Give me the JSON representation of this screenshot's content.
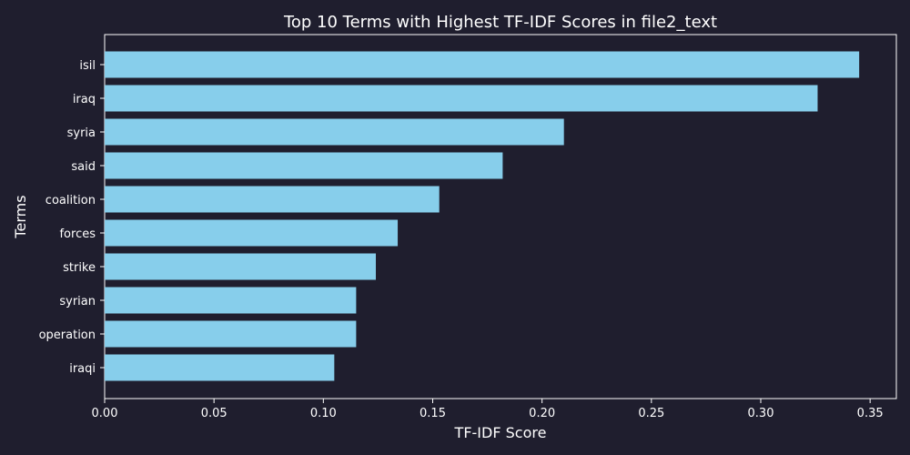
{
  "chart_data": {
    "type": "bar",
    "orientation": "horizontal",
    "title": "Top 10 Terms with Highest TF-IDF Scores in file2_text",
    "xlabel": "TF-IDF Score",
    "ylabel": "Terms",
    "categories": [
      "isil",
      "iraq",
      "syria",
      "said",
      "coalition",
      "forces",
      "strike",
      "syrian",
      "operation",
      "iraqi"
    ],
    "values": [
      0.345,
      0.326,
      0.21,
      0.182,
      0.153,
      0.134,
      0.124,
      0.115,
      0.115,
      0.105
    ],
    "xlim": [
      0,
      0.362
    ],
    "xticks": [
      "0.00",
      "0.05",
      "0.10",
      "0.15",
      "0.20",
      "0.25",
      "0.30",
      "0.35"
    ],
    "grid": false,
    "colors": {
      "bar": "#87ceeb",
      "background": "#1f1e2e",
      "text": "#ffffff",
      "axis": "#ffffff"
    }
  }
}
